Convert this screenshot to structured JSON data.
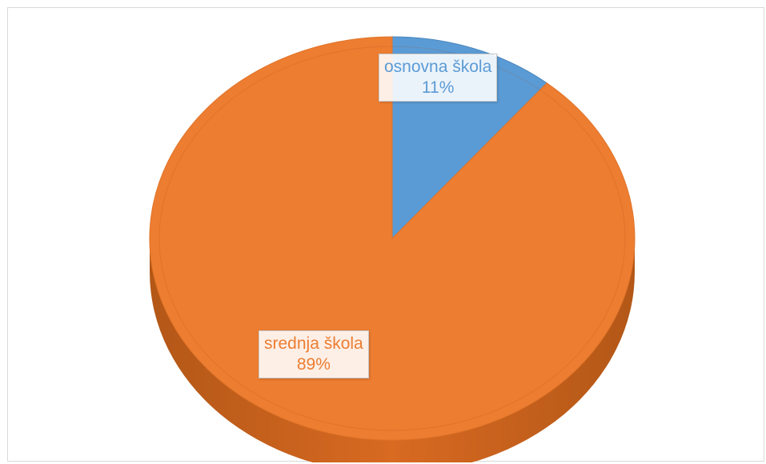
{
  "chart_data": {
    "type": "pie",
    "style": "3d",
    "title": "",
    "legend": "none",
    "slices": [
      {
        "label": "osnovna škola",
        "value": 11,
        "display": "11%",
        "color": "#5b9bd5"
      },
      {
        "label": "srednja škola",
        "value": 89,
        "display": "89%",
        "color": "#ed7d31"
      }
    ]
  }
}
